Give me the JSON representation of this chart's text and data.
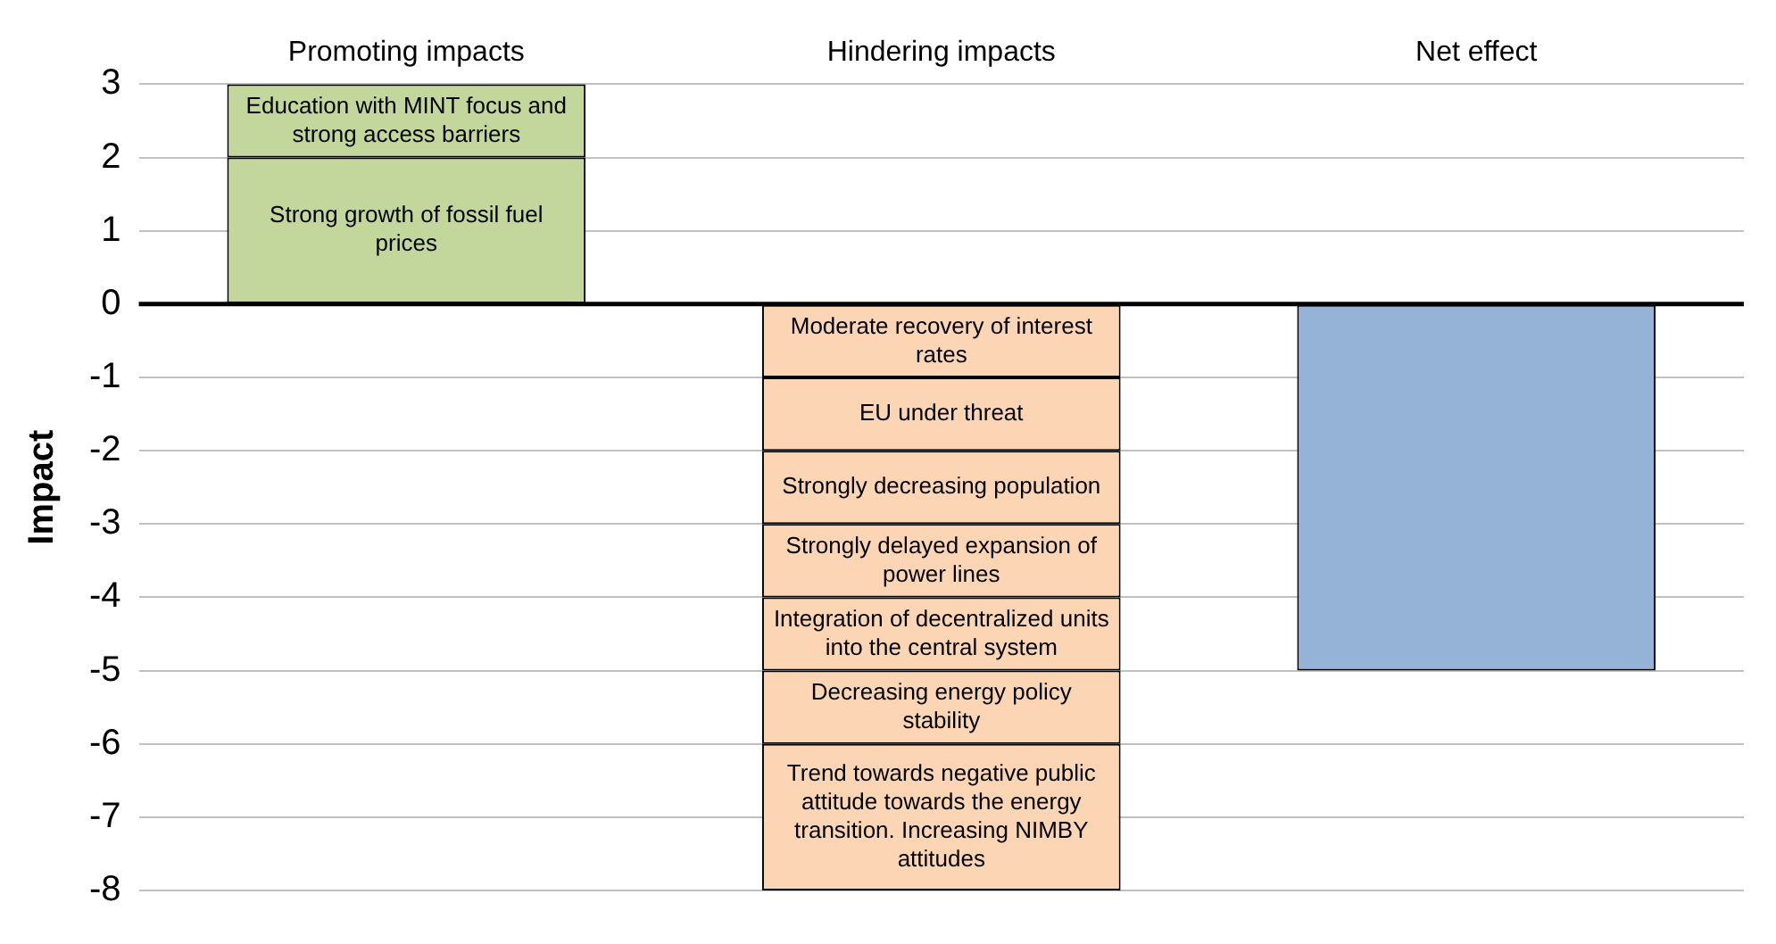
{
  "chart_data": {
    "type": "bar",
    "stacked": true,
    "ylabel": "Impact",
    "categories": [
      "Promoting impacts",
      "Hindering impacts",
      "Net effect"
    ],
    "series": [
      {
        "name": "Strong growth of fossil fuel prices",
        "color": "#c3d69b",
        "values": [
          2,
          null,
          null
        ]
      },
      {
        "name": "Education with MINT focus and strong access barriers",
        "color": "#c3d69b",
        "values": [
          1,
          null,
          null
        ]
      },
      {
        "name": "Moderate recovery of interest rates",
        "color": "#fcd5b5",
        "values": [
          null,
          -1,
          null
        ]
      },
      {
        "name": "EU under threat",
        "color": "#fcd5b5",
        "values": [
          null,
          -1,
          null
        ]
      },
      {
        "name": "Strongly decreasing population",
        "color": "#fcd5b5",
        "values": [
          null,
          -1,
          null
        ]
      },
      {
        "name": "Strongly delayed expansion of power lines",
        "color": "#fcd5b5",
        "values": [
          null,
          -1,
          null
        ]
      },
      {
        "name": "Integration of decentralized units into the central system",
        "color": "#fcd5b5",
        "values": [
          null,
          -1,
          null
        ]
      },
      {
        "name": "Decreasing energy policy stability",
        "color": "#fcd5b5",
        "values": [
          null,
          -1,
          null
        ]
      },
      {
        "name": "Trend towards negative public attitude towards the energy transition. Increasing NIMBY attitudes",
        "color": "#fcd5b5",
        "values": [
          null,
          -2,
          null
        ]
      },
      {
        "color": "#95b3d7",
        "values": [
          null,
          null,
          -5
        ]
      }
    ],
    "ylim": [
      -8,
      3
    ],
    "yticks": [
      -8,
      -7,
      -6,
      -5,
      -4,
      -3,
      -2,
      -1,
      0,
      1,
      2,
      3
    ],
    "grid": "y",
    "legend": false
  }
}
